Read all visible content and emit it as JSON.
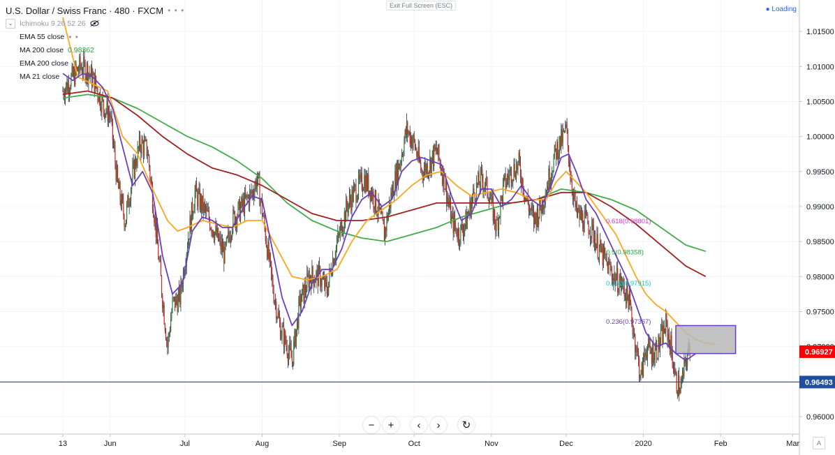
{
  "header": {
    "title": "U.S. Dollar / Swiss Franc · 480 · FXCM",
    "more_icon": "ellipsis-icon",
    "indicators": [
      {
        "label": "Ichimoku 9 26 52 26",
        "icon": "eye-hidden-icon"
      },
      {
        "label": "EMA 55 close"
      },
      {
        "label": "MA 200 close",
        "value": "0.98362",
        "color": "#2e9e3e"
      },
      {
        "label": "EMA 200 close"
      },
      {
        "label": "MA 21 close"
      }
    ]
  },
  "top_center_label": "Exit Full Screen (ESC)",
  "status": {
    "label": "Loading",
    "color": "#2962ff"
  },
  "bottom_toolbar": [
    {
      "name": "zoom-out-button",
      "glyph": "−"
    },
    {
      "name": "zoom-in-button",
      "glyph": "+"
    },
    {
      "name": "scroll-left-button",
      "glyph": "‹"
    },
    {
      "name": "scroll-right-button",
      "glyph": "›"
    },
    {
      "name": "reset-button",
      "glyph": "↻"
    }
  ],
  "auto_scale_label": "A",
  "colors": {
    "up": "#2f7d32",
    "down": "#e01e1e",
    "ema55": "#ffa41b",
    "ma200": "#3fad46",
    "ema200": "#a0201e",
    "ma21": "#6a3dc1",
    "hline": "#1e4fa1",
    "box_fill": "#b7b7b7",
    "box_stroke": "#6a3dc1"
  },
  "chart_data": {
    "type": "candlestick",
    "symbol": "USDCHF",
    "timeframe": "480",
    "ylim": [
      0.9575,
      1.0195
    ],
    "yticks": [
      0.96,
      0.965,
      0.97,
      0.975,
      0.98,
      0.985,
      0.99,
      0.995,
      1.0,
      1.005,
      1.01,
      1.015
    ],
    "yticks_labels": [
      "0.96000",
      "0.96500",
      "0.97000",
      "0.97500",
      "0.98000",
      "0.98500",
      "0.99000",
      "0.99500",
      "1.00000",
      "1.00500",
      "1.01000",
      "1.01500"
    ],
    "xlabels": [
      "13",
      "Jun",
      "Jul",
      "Aug",
      "Sep",
      "Oct",
      "Nov",
      "Dec",
      "2020",
      "Feb",
      "Mar"
    ],
    "xlabel_days": [
      0,
      19,
      49,
      80,
      111,
      141,
      172,
      202,
      233,
      264,
      293
    ],
    "data_end_day": 252,
    "price_path": [
      [
        0,
        1.0065
      ],
      [
        4,
        1.0085
      ],
      [
        7,
        1.01
      ],
      [
        10,
        1.0095
      ],
      [
        13,
        1.0075
      ],
      [
        16,
        1.0045
      ],
      [
        19,
        1.003
      ],
      [
        22,
        0.993
      ],
      [
        25,
        0.988
      ],
      [
        28,
        0.9945
      ],
      [
        31,
        0.999
      ],
      [
        34,
        0.998
      ],
      [
        37,
        0.988
      ],
      [
        40,
        0.977
      ],
      [
        42,
        0.97
      ],
      [
        44,
        0.976
      ],
      [
        47,
        0.977
      ],
      [
        50,
        0.985
      ],
      [
        53,
        0.992
      ],
      [
        56,
        0.99
      ],
      [
        59,
        0.988
      ],
      [
        62,
        0.9855
      ],
      [
        65,
        0.983
      ],
      [
        68,
        0.988
      ],
      [
        72,
        0.99
      ],
      [
        76,
        0.992
      ],
      [
        78,
        0.994
      ],
      [
        80,
        0.9895
      ],
      [
        84,
        0.979
      ],
      [
        87,
        0.973
      ],
      [
        90,
        0.97
      ],
      [
        92,
        0.968
      ],
      [
        95,
        0.976
      ],
      [
        99,
        0.98
      ],
      [
        103,
        0.98
      ],
      [
        106,
        0.978
      ],
      [
        108,
        0.982
      ],
      [
        111,
        0.986
      ],
      [
        114,
        0.99
      ],
      [
        117,
        0.992
      ],
      [
        121,
        0.994
      ],
      [
        124,
        0.992
      ],
      [
        127,
        0.989
      ],
      [
        129,
        0.986
      ],
      [
        132,
        0.992
      ],
      [
        135,
        0.996
      ],
      [
        138,
        1.001
      ],
      [
        141,
        0.999
      ],
      [
        144,
        0.995
      ],
      [
        147,
        0.996
      ],
      [
        150,
        0.998
      ],
      [
        153,
        0.994
      ],
      [
        156,
        0.988
      ],
      [
        159,
        0.986
      ],
      [
        162,
        0.988
      ],
      [
        165,
        0.992
      ],
      [
        168,
        0.994
      ],
      [
        171,
        0.992
      ],
      [
        174,
        0.987
      ],
      [
        177,
        0.993
      ],
      [
        180,
        0.995
      ],
      [
        183,
        0.996
      ],
      [
        186,
        0.991
      ],
      [
        189,
        0.988
      ],
      [
        192,
        0.99
      ],
      [
        195,
        0.994
      ],
      [
        198,
        0.998
      ],
      [
        201,
        1.0
      ],
      [
        202,
        1.001
      ],
      [
        204,
        0.994
      ],
      [
        206,
        0.989
      ],
      [
        209,
        0.988
      ],
      [
        212,
        0.987
      ],
      [
        215,
        0.984
      ],
      [
        218,
        0.982
      ],
      [
        221,
        0.98
      ],
      [
        224,
        0.979
      ],
      [
        227,
        0.977
      ],
      [
        230,
        0.97
      ],
      [
        232,
        0.9655
      ],
      [
        234,
        0.97
      ],
      [
        236,
        0.969
      ],
      [
        239,
        0.97
      ],
      [
        242,
        0.973
      ],
      [
        244,
        0.97
      ],
      [
        246,
        0.965
      ],
      [
        248,
        0.964
      ],
      [
        250,
        0.968
      ],
      [
        252,
        0.97
      ],
      [
        254,
        0.969
      ],
      [
        257,
        0.97
      ],
      [
        260,
        0.9705
      ],
      [
        262,
        0.97
      ]
    ],
    "ema55": [
      [
        0,
        1.017
      ],
      [
        6,
        1.0085
      ],
      [
        12,
        1.0075
      ],
      [
        18,
        1.0065
      ],
      [
        24,
        1.0
      ],
      [
        30,
        0.9975
      ],
      [
        36,
        0.9925
      ],
      [
        42,
        0.988
      ],
      [
        46,
        0.9865
      ],
      [
        50,
        0.987
      ],
      [
        56,
        0.988
      ],
      [
        62,
        0.9875
      ],
      [
        68,
        0.987
      ],
      [
        74,
        0.988
      ],
      [
        80,
        0.988
      ],
      [
        86,
        0.984
      ],
      [
        92,
        0.98
      ],
      [
        98,
        0.9795
      ],
      [
        104,
        0.98
      ],
      [
        110,
        0.981
      ],
      [
        116,
        0.985
      ],
      [
        122,
        0.988
      ],
      [
        128,
        0.9895
      ],
      [
        134,
        0.991
      ],
      [
        140,
        0.993
      ],
      [
        146,
        0.9945
      ],
      [
        152,
        0.995
      ],
      [
        158,
        0.993
      ],
      [
        164,
        0.9915
      ],
      [
        170,
        0.992
      ],
      [
        176,
        0.9925
      ],
      [
        182,
        0.992
      ],
      [
        188,
        0.991
      ],
      [
        194,
        0.991
      ],
      [
        198,
        0.9935
      ],
      [
        202,
        0.995
      ],
      [
        206,
        0.9935
      ],
      [
        210,
        0.992
      ],
      [
        214,
        0.99
      ],
      [
        218,
        0.988
      ],
      [
        222,
        0.986
      ],
      [
        226,
        0.983
      ],
      [
        230,
        0.98
      ],
      [
        234,
        0.9775
      ],
      [
        238,
        0.976
      ],
      [
        242,
        0.975
      ],
      [
        246,
        0.9735
      ],
      [
        250,
        0.972
      ],
      [
        254,
        0.971
      ],
      [
        258,
        0.9705
      ],
      [
        262,
        0.9703
      ]
    ],
    "ma200": [
      [
        0,
        1.0055
      ],
      [
        10,
        1.006
      ],
      [
        20,
        1.0055
      ],
      [
        30,
        1.004
      ],
      [
        40,
        1.002
      ],
      [
        50,
        1.0
      ],
      [
        60,
        0.9985
      ],
      [
        70,
        0.9965
      ],
      [
        80,
        0.994
      ],
      [
        90,
        0.9905
      ],
      [
        100,
        0.988
      ],
      [
        110,
        0.9865
      ],
      [
        120,
        0.9855
      ],
      [
        130,
        0.985
      ],
      [
        140,
        0.986
      ],
      [
        150,
        0.987
      ],
      [
        160,
        0.9885
      ],
      [
        170,
        0.9895
      ],
      [
        180,
        0.9905
      ],
      [
        190,
        0.991
      ],
      [
        200,
        0.9925
      ],
      [
        210,
        0.992
      ],
      [
        220,
        0.991
      ],
      [
        230,
        0.9895
      ],
      [
        240,
        0.987
      ],
      [
        250,
        0.9845
      ],
      [
        258,
        0.9836
      ]
    ],
    "ema200": [
      [
        0,
        1.006
      ],
      [
        10,
        1.0065
      ],
      [
        20,
        1.0055
      ],
      [
        30,
        1.003
      ],
      [
        40,
        1.0
      ],
      [
        50,
        0.9975
      ],
      [
        60,
        0.9955
      ],
      [
        70,
        0.9945
      ],
      [
        80,
        0.993
      ],
      [
        90,
        0.991
      ],
      [
        100,
        0.989
      ],
      [
        110,
        0.988
      ],
      [
        120,
        0.988
      ],
      [
        130,
        0.9885
      ],
      [
        140,
        0.9895
      ],
      [
        150,
        0.9905
      ],
      [
        160,
        0.9905
      ],
      [
        170,
        0.9905
      ],
      [
        180,
        0.9905
      ],
      [
        190,
        0.991
      ],
      [
        200,
        0.992
      ],
      [
        210,
        0.992
      ],
      [
        220,
        0.99
      ],
      [
        230,
        0.9875
      ],
      [
        240,
        0.9845
      ],
      [
        250,
        0.9815
      ],
      [
        258,
        0.98
      ]
    ],
    "ma21": [
      [
        0,
        1.009
      ],
      [
        4,
        1.008
      ],
      [
        8,
        1.009
      ],
      [
        12,
        1.0085
      ],
      [
        16,
        1.007
      ],
      [
        20,
        1.004
      ],
      [
        24,
        0.9985
      ],
      [
        28,
        0.993
      ],
      [
        32,
        0.995
      ],
      [
        36,
        0.992
      ],
      [
        40,
        0.983
      ],
      [
        44,
        0.9775
      ],
      [
        48,
        0.979
      ],
      [
        52,
        0.9865
      ],
      [
        56,
        0.9885
      ],
      [
        60,
        0.988
      ],
      [
        64,
        0.987
      ],
      [
        68,
        0.987
      ],
      [
        72,
        0.9895
      ],
      [
        76,
        0.9915
      ],
      [
        80,
        0.991
      ],
      [
        84,
        0.984
      ],
      [
        88,
        0.977
      ],
      [
        92,
        0.973
      ],
      [
        96,
        0.975
      ],
      [
        100,
        0.979
      ],
      [
        104,
        0.981
      ],
      [
        108,
        0.981
      ],
      [
        112,
        0.984
      ],
      [
        116,
        0.9885
      ],
      [
        120,
        0.991
      ],
      [
        124,
        0.992
      ],
      [
        128,
        0.99
      ],
      [
        132,
        0.991
      ],
      [
        136,
        0.995
      ],
      [
        140,
        0.9965
      ],
      [
        144,
        0.997
      ],
      [
        148,
        0.9965
      ],
      [
        152,
        0.996
      ],
      [
        156,
        0.9915
      ],
      [
        160,
        0.988
      ],
      [
        164,
        0.989
      ],
      [
        168,
        0.9925
      ],
      [
        172,
        0.9925
      ],
      [
        176,
        0.99
      ],
      [
        180,
        0.991
      ],
      [
        184,
        0.993
      ],
      [
        188,
        0.991
      ],
      [
        192,
        0.99
      ],
      [
        196,
        0.993
      ],
      [
        200,
        0.997
      ],
      [
        203,
        0.9975
      ],
      [
        206,
        0.995
      ],
      [
        210,
        0.991
      ],
      [
        214,
        0.989
      ],
      [
        218,
        0.986
      ],
      [
        222,
        0.983
      ],
      [
        226,
        0.98
      ],
      [
        230,
        0.976
      ],
      [
        234,
        0.972
      ],
      [
        238,
        0.97
      ],
      [
        242,
        0.9705
      ],
      [
        246,
        0.969
      ],
      [
        250,
        0.968
      ],
      [
        254,
        0.969
      ]
    ],
    "fibonacci": [
      {
        "label": "0.618(0.98801)",
        "value": 0.98801,
        "color": "#e62dd3"
      },
      {
        "label": "0.5(0.98358)",
        "value": 0.98358,
        "color": "#2e9e3e"
      },
      {
        "label": "0.382(0.97915)",
        "value": 0.97915,
        "color": "#18c2d6"
      },
      {
        "label": "0.236(0.97367)",
        "value": 0.97367,
        "color": "#6a3dc1"
      }
    ],
    "fib_anchor_day": 218,
    "box": {
      "day_start": 246,
      "day_end": 270,
      "top": 0.973,
      "bottom": 0.969
    },
    "horizontal_line": {
      "value": 0.96493,
      "label": "0.96493"
    },
    "last_price": {
      "value": 0.96927,
      "label": "0.96927",
      "color": "#ff0000"
    }
  }
}
